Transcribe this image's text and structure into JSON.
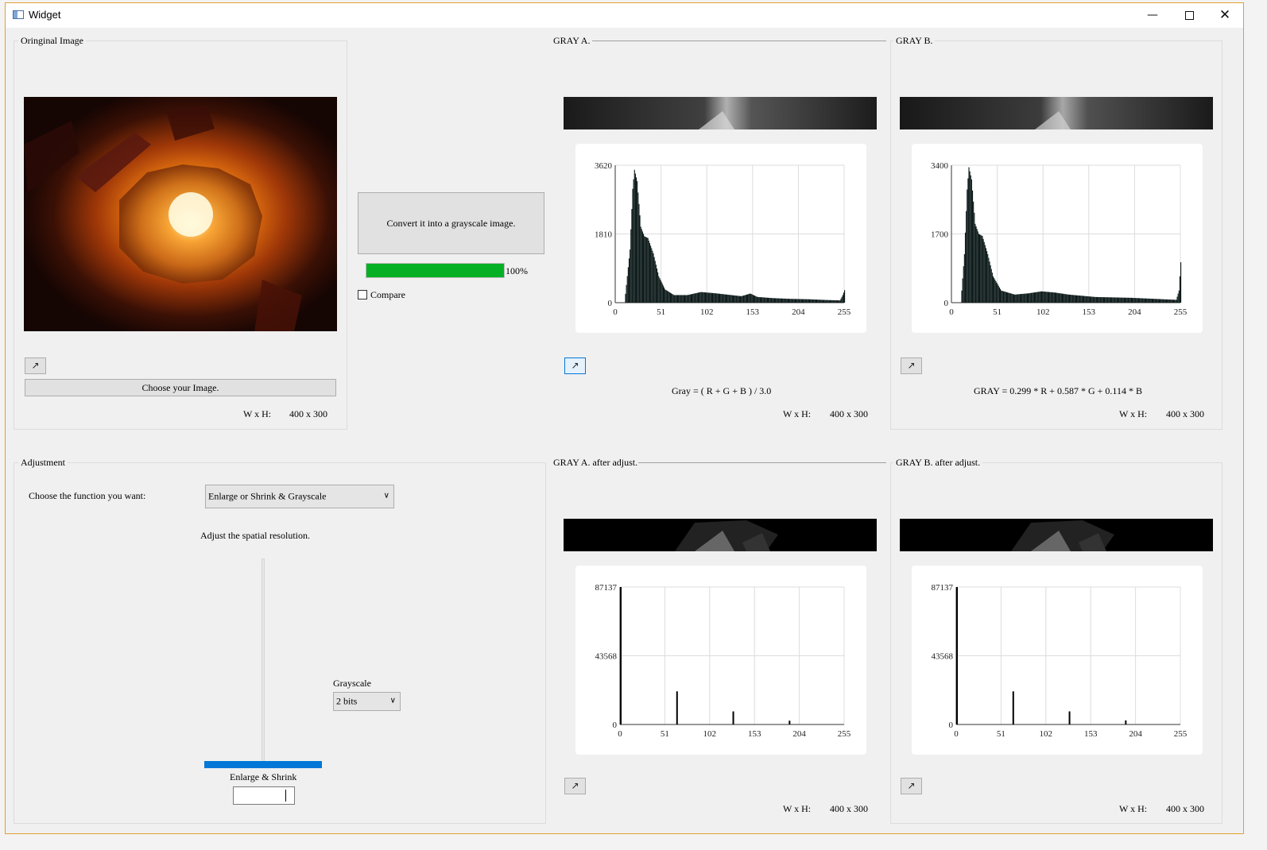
{
  "window": {
    "title": "Widget",
    "minimize_icon": "minimize-icon",
    "maximize_icon": "maximize-icon",
    "close_icon": "close-icon"
  },
  "original": {
    "group_label": "Oringinal Image",
    "expand_icon": "arrow-expand-icon",
    "choose_label": "Choose your Image.",
    "wh_label": "W x H:",
    "wh_value": "400 x 300"
  },
  "convert": {
    "button_label": "Convert it into a grayscale image.",
    "progress_percent": 100,
    "progress_text": "100%",
    "compare_label": "Compare",
    "compare_checked": false
  },
  "gray_a": {
    "group_label": "GRAY A.",
    "formula": "Gray = ( R + G + B ) / 3.0",
    "wh_label": "W x H:",
    "wh_value": "400 x 300"
  },
  "gray_b": {
    "group_label": "GRAY B.",
    "formula": "GRAY = 0.299 * R + 0.587 * G + 0.114 * B",
    "wh_label": "W x H:",
    "wh_value": "400 x 300"
  },
  "adjustment": {
    "group_label": "Adjustment",
    "choose_label": "Choose the function you want:",
    "function_value": "Enlarge or Shrink & Grayscale",
    "spatial_label": "Adjust the spatial resolution.",
    "grayscale_label": "Grayscale",
    "grayscale_value": "2 bits",
    "enlarge_label": "Enlarge & Shrink",
    "slider_fraction": 1.0
  },
  "gray_a_adj": {
    "group_label": "GRAY A. after adjust.",
    "wh_label": "W x H:",
    "wh_value": "400 x 300"
  },
  "gray_b_adj": {
    "group_label": "GRAY B. after adjust.",
    "wh_label": "W x H:",
    "wh_value": "400 x 300"
  },
  "chart_data": [
    {
      "type": "bar",
      "id": "hist-gray-a",
      "x_ticks": [
        "0",
        "51",
        "102",
        "153",
        "204",
        "255"
      ],
      "y_ticks": [
        "0",
        "1810",
        "3620"
      ],
      "xlim": [
        0,
        255
      ],
      "ylim": [
        0,
        3620
      ],
      "grid": true,
      "profile": [
        [
          0,
          0
        ],
        [
          10,
          0
        ],
        [
          16,
          1400
        ],
        [
          19,
          3000
        ],
        [
          21,
          3500
        ],
        [
          24,
          3200
        ],
        [
          28,
          2000
        ],
        [
          32,
          1750
        ],
        [
          36,
          1700
        ],
        [
          42,
          1300
        ],
        [
          48,
          700
        ],
        [
          55,
          350
        ],
        [
          65,
          200
        ],
        [
          80,
          200
        ],
        [
          95,
          280
        ],
        [
          110,
          250
        ],
        [
          125,
          210
        ],
        [
          140,
          170
        ],
        [
          150,
          240
        ],
        [
          158,
          150
        ],
        [
          175,
          120
        ],
        [
          195,
          100
        ],
        [
          215,
          90
        ],
        [
          235,
          70
        ],
        [
          250,
          60
        ],
        [
          253,
          200
        ],
        [
          255,
          330
        ]
      ]
    },
    {
      "type": "bar",
      "id": "hist-gray-b",
      "x_ticks": [
        "0",
        "51",
        "102",
        "153",
        "204",
        "255"
      ],
      "y_ticks": [
        "0",
        "1700",
        "3400"
      ],
      "xlim": [
        0,
        255
      ],
      "ylim": [
        0,
        3400
      ],
      "grid": true,
      "profile": [
        [
          0,
          0
        ],
        [
          10,
          0
        ],
        [
          14,
          1200
        ],
        [
          17,
          2800
        ],
        [
          19,
          3350
        ],
        [
          22,
          3050
        ],
        [
          26,
          1950
        ],
        [
          30,
          1700
        ],
        [
          34,
          1650
        ],
        [
          40,
          1200
        ],
        [
          46,
          650
        ],
        [
          55,
          300
        ],
        [
          70,
          200
        ],
        [
          85,
          230
        ],
        [
          100,
          280
        ],
        [
          115,
          250
        ],
        [
          130,
          200
        ],
        [
          145,
          170
        ],
        [
          160,
          140
        ],
        [
          180,
          130
        ],
        [
          200,
          120
        ],
        [
          220,
          100
        ],
        [
          240,
          80
        ],
        [
          250,
          70
        ],
        [
          253,
          300
        ],
        [
          255,
          1000
        ]
      ]
    },
    {
      "type": "bar",
      "id": "hist-gray-a-adj",
      "x_ticks": [
        "0",
        "51",
        "102",
        "153",
        "204",
        "255"
      ],
      "y_ticks": [
        "0",
        "43568",
        "87137"
      ],
      "xlim": [
        0,
        255
      ],
      "ylim": [
        0,
        87137
      ],
      "grid": true,
      "bars": [
        [
          0,
          87137
        ],
        [
          64,
          21000
        ],
        [
          128,
          8300
        ],
        [
          192,
          2400
        ]
      ]
    },
    {
      "type": "bar",
      "id": "hist-gray-b-adj",
      "x_ticks": [
        "0",
        "51",
        "102",
        "153",
        "204",
        "255"
      ],
      "y_ticks": [
        "0",
        "43568",
        "87137"
      ],
      "xlim": [
        0,
        255
      ],
      "ylim": [
        0,
        87137
      ],
      "grid": true,
      "bars": [
        [
          0,
          87137
        ],
        [
          64,
          21000
        ],
        [
          128,
          8300
        ],
        [
          192,
          2600
        ]
      ]
    }
  ]
}
